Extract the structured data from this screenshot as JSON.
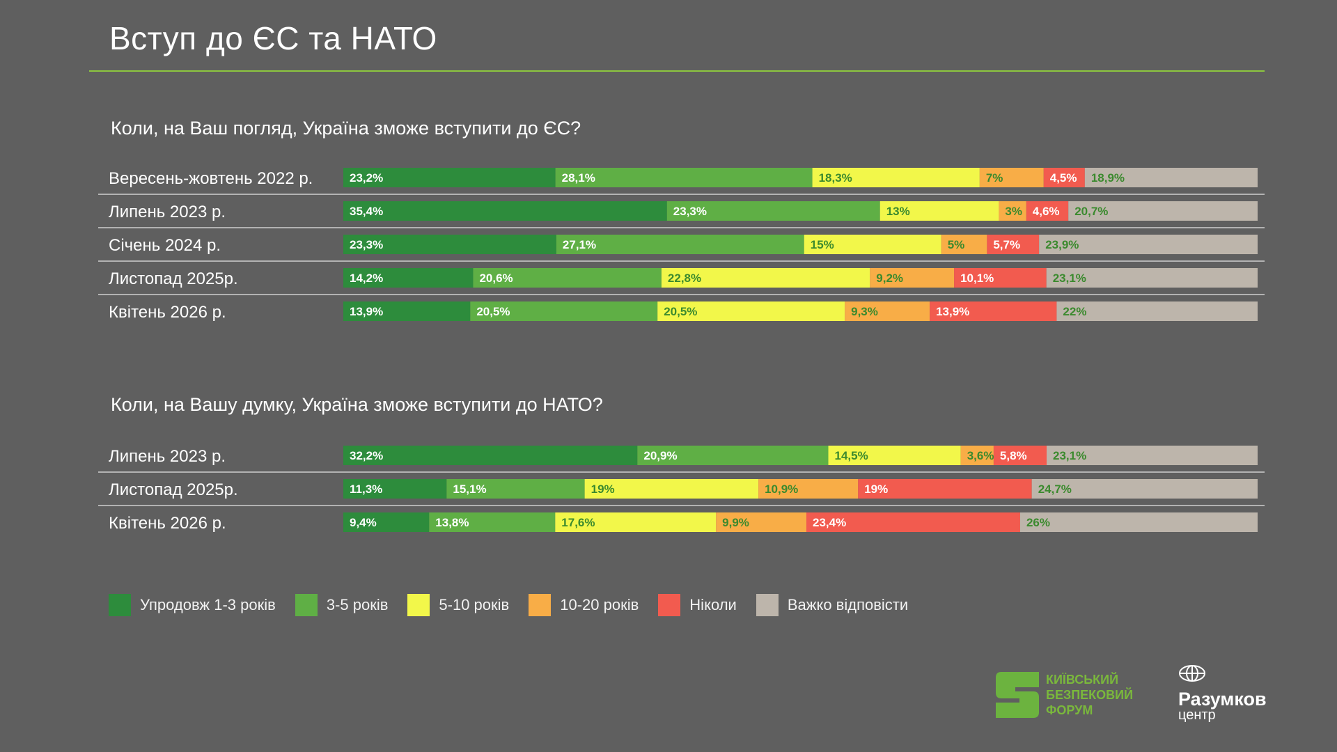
{
  "header": {
    "title": "Вступ до ЄС та НАТО"
  },
  "colors": {
    "c1": "#2d8c3c",
    "c2": "#5faf45",
    "c3": "#f2f74a",
    "c4": "#f8ad47",
    "c5": "#f25b4f",
    "c6": "#bdb5ab",
    "rule": "#8cc63f"
  },
  "chart_data": [
    {
      "type": "bar",
      "orientation": "horizontal-stacked-100",
      "title": "Коли, на Ваш погляд, Україна зможе вступити до ЄС?",
      "categories": [
        "Вересень-жовтень 2022 р.",
        "Липень 2023 р.",
        "Січень 2024 р.",
        "Листопад 2025р.",
        "Квітень 2026 р."
      ],
      "series": [
        {
          "name": "Упродовж 1-3 років",
          "values": [
            23.2,
            35.4,
            23.3,
            14.2,
            13.9
          ],
          "labels": [
            "23,2%",
            "35,4%",
            "23,3%",
            "14,2%",
            "13,9%"
          ]
        },
        {
          "name": "3-5 років",
          "values": [
            28.1,
            23.3,
            27.1,
            20.6,
            20.5
          ],
          "labels": [
            "28,1%",
            "23,3%",
            "27,1%",
            "20,6%",
            "20,5%"
          ]
        },
        {
          "name": "5-10 років",
          "values": [
            18.3,
            13,
            15,
            22.8,
            20.5
          ],
          "labels": [
            "18,3%",
            "13%",
            "15%",
            "22,8%",
            "20,5%"
          ]
        },
        {
          "name": "10-20 років",
          "values": [
            7,
            3,
            5,
            9.2,
            9.3
          ],
          "labels": [
            "7%",
            "3%",
            "5%",
            "9,2%",
            "9,3%"
          ]
        },
        {
          "name": "Ніколи",
          "values": [
            4.5,
            4.6,
            5.7,
            10.1,
            13.9
          ],
          "labels": [
            "4,5%",
            "4,6%",
            "5,7%",
            "10,1%",
            "13,9%"
          ]
        },
        {
          "name": "Важко відповісти",
          "values": [
            18.9,
            20.7,
            23.9,
            23.1,
            22
          ],
          "labels": [
            "18,9%",
            "20,7%",
            "23,9%",
            "23,1%",
            "22%"
          ]
        }
      ]
    },
    {
      "type": "bar",
      "orientation": "horizontal-stacked-100",
      "title": "Коли, на Вашу думку, Україна зможе вступити до НАТО?",
      "categories": [
        "Липень 2023 р.",
        "Листопад 2025р.",
        "Квітень 2026 р."
      ],
      "series": [
        {
          "name": "Упродовж 1-3 років",
          "values": [
            32.2,
            11.3,
            9.4
          ],
          "labels": [
            "32,2%",
            "11,3%",
            "9,4%"
          ]
        },
        {
          "name": "3-5 років",
          "values": [
            20.9,
            15.1,
            13.8
          ],
          "labels": [
            "20,9%",
            "15,1%",
            "13,8%"
          ]
        },
        {
          "name": "5-10 років",
          "values": [
            14.5,
            19,
            17.6
          ],
          "labels": [
            "14,5%",
            "19%",
            "17,6%"
          ]
        },
        {
          "name": "10-20 років",
          "values": [
            3.6,
            10.9,
            9.9
          ],
          "labels": [
            "3,6%",
            "10,9%",
            "9,9%"
          ]
        },
        {
          "name": "Ніколи",
          "values": [
            5.8,
            19,
            23.4
          ],
          "labels": [
            "5,8%",
            "19%",
            "23,4%"
          ]
        },
        {
          "name": "Важко відповісти",
          "values": [
            23.1,
            24.7,
            26
          ],
          "labels": [
            "23,1%",
            "24,7%",
            "26%"
          ]
        }
      ]
    }
  ],
  "legend": {
    "items": [
      {
        "label": "Упродовж 1-3 років",
        "color": "#2d8c3c"
      },
      {
        "label": "3-5 років",
        "color": "#5faf45"
      },
      {
        "label": "5-10 років",
        "color": "#f2f74a"
      },
      {
        "label": "10-20 років",
        "color": "#f8ad47"
      },
      {
        "label": "Ніколи",
        "color": "#f25b4f"
      },
      {
        "label": "Важко відповісти",
        "color": "#bdb5ab"
      }
    ]
  },
  "logos": {
    "kbf": {
      "line1": "КИЇВСЬКИЙ",
      "line2": "БЕЗПЕКОВИЙ",
      "line3": "ФОРУМ"
    },
    "razumkov": {
      "name": "Разумков",
      "sub": "центр"
    }
  }
}
